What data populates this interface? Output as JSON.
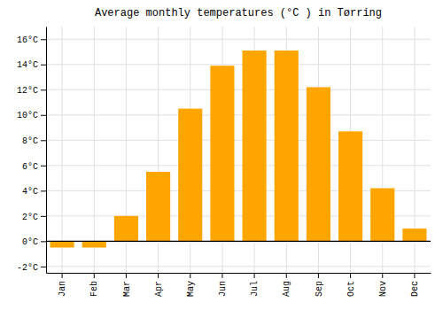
{
  "chart_data": {
    "type": "bar",
    "title": "Average monthly temperatures (°C ) in Tørring",
    "categories": [
      "Jan",
      "Feb",
      "Mar",
      "Apr",
      "May",
      "Jun",
      "Jul",
      "Aug",
      "Sep",
      "Oct",
      "Nov",
      "Dec"
    ],
    "values": [
      -0.5,
      -0.5,
      2.0,
      5.5,
      10.5,
      13.9,
      15.1,
      15.1,
      12.2,
      8.7,
      4.2,
      1.0
    ],
    "color": "#FFA500",
    "ylim": [
      -2.5,
      17
    ],
    "yticks": [
      {
        "value": -2,
        "label": "-2°C"
      },
      {
        "value": 0,
        "label": "0°C"
      },
      {
        "value": 2,
        "label": "2°C"
      },
      {
        "value": 4,
        "label": "4°C"
      },
      {
        "value": 6,
        "label": "6°C"
      },
      {
        "value": 8,
        "label": "8°C"
      },
      {
        "value": 10,
        "label": "10°C"
      },
      {
        "value": 12,
        "label": "12°C"
      },
      {
        "value": 14,
        "label": "14°C"
      },
      {
        "value": 16,
        "label": "16°C"
      }
    ],
    "grid": true
  }
}
